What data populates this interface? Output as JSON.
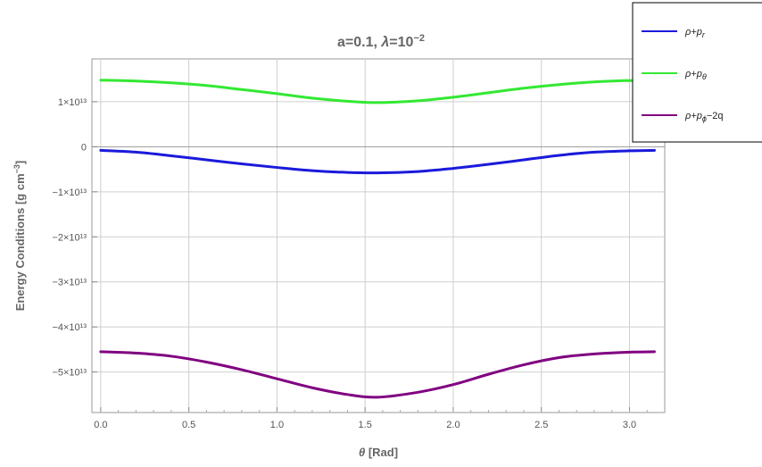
{
  "chart_data": {
    "type": "line",
    "title": "a=0.1, λ=10⁻²",
    "xlabel": "θ [Rad]",
    "ylabel": "Energy Conditions [g cm⁻³]",
    "xlim": [
      -0.05,
      3.2
    ],
    "ylim": [
      -59000000000000.0,
      19500000000000.0
    ],
    "grid": true,
    "legend_position": "top-right",
    "x_ticks": [
      {
        "value": 0.0,
        "label": "0.0"
      },
      {
        "value": 0.5,
        "label": "0.5"
      },
      {
        "value": 1.0,
        "label": "1.0"
      },
      {
        "value": 1.5,
        "label": "1.5"
      },
      {
        "value": 2.0,
        "label": "2.0"
      },
      {
        "value": 2.5,
        "label": "2.5"
      },
      {
        "value": 3.0,
        "label": "3.0"
      }
    ],
    "y_ticks": [
      {
        "value": 10000000000000.0,
        "label": "1×10¹³"
      },
      {
        "value": 0,
        "label": "0"
      },
      {
        "value": -10000000000000.0,
        "label": "−1×10¹³"
      },
      {
        "value": -20000000000000.0,
        "label": "−2×10¹³"
      },
      {
        "value": -30000000000000.0,
        "label": "−3×10¹³"
      },
      {
        "value": -40000000000000.0,
        "label": "−4×10¹³"
      },
      {
        "value": -50000000000000.0,
        "label": "−5×10¹³"
      }
    ],
    "series": [
      {
        "name": "ρ+p_r",
        "color": "#1a1adb",
        "x": [
          0.0,
          0.2,
          0.4,
          0.6,
          0.8,
          1.0,
          1.2,
          1.4,
          1.571,
          1.8,
          2.0,
          2.2,
          2.4,
          2.6,
          2.8,
          3.0,
          3.1416
        ],
        "y": [
          -800000000000.0,
          -1200000000000.0,
          -2000000000000.0,
          -2900000000000.0,
          -3800000000000.0,
          -4600000000000.0,
          -5300000000000.0,
          -5700000000000.0,
          -5800000000000.0,
          -5500000000000.0,
          -4800000000000.0,
          -3900000000000.0,
          -2900000000000.0,
          -1900000000000.0,
          -1200000000000.0,
          -900000000000.0,
          -800000000000.0
        ]
      },
      {
        "name": "ρ+p_θ",
        "color": "#33e833",
        "x": [
          0.0,
          0.2,
          0.4,
          0.6,
          0.8,
          1.0,
          1.2,
          1.4,
          1.571,
          1.8,
          2.0,
          2.2,
          2.4,
          2.6,
          2.8,
          3.0,
          3.1416
        ],
        "y": [
          14800000000000.0,
          14600000000000.0,
          14200000000000.0,
          13600000000000.0,
          12700000000000.0,
          11800000000000.0,
          10800000000000.0,
          10100000000000.0,
          9800000000000.0,
          10200000000000.0,
          11000000000000.0,
          12000000000000.0,
          13000000000000.0,
          13800000000000.0,
          14400000000000.0,
          14700000000000.0,
          14800000000000.0
        ]
      },
      {
        "name": "ρ+p_ϕ−2q",
        "color": "#800080",
        "x": [
          0.0,
          0.2,
          0.4,
          0.6,
          0.8,
          1.0,
          1.2,
          1.4,
          1.571,
          1.8,
          2.0,
          2.2,
          2.4,
          2.6,
          2.8,
          3.0,
          3.1416
        ],
        "y": [
          -45500000000000.0,
          -45800000000000.0,
          -46500000000000.0,
          -47800000000000.0,
          -49500000000000.0,
          -51500000000000.0,
          -53500000000000.0,
          -55000000000000.0,
          -55600000000000.0,
          -54500000000000.0,
          -52800000000000.0,
          -50500000000000.0,
          -48400000000000.0,
          -46800000000000.0,
          -46000000000000.0,
          -45600000000000.0,
          -45500000000000.0
        ]
      }
    ]
  },
  "legend": [
    {
      "base": "ρ+p",
      "sub": "r",
      "tail": ""
    },
    {
      "base": "ρ+p",
      "sub": "θ",
      "tail": ""
    },
    {
      "base": "ρ+p",
      "sub": "ϕ",
      "tail": "−2q"
    }
  ],
  "title_parts": {
    "a": "a=0.1, ",
    "lam": "λ",
    "eq": "=10",
    "exp": "−2"
  },
  "ylabel_parts": {
    "main": "Energy Conditions [g cm",
    "exp": "−3",
    "close": "]"
  },
  "xlabel_parts": {
    "theta": "θ",
    "rest": " [Rad]"
  }
}
